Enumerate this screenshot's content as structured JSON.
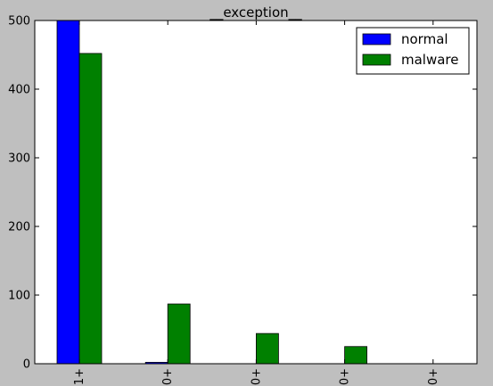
{
  "chart_data": {
    "type": "bar",
    "title": "__exception__",
    "xlabel": "",
    "ylabel": "",
    "categories": [
      "1+",
      "0+",
      "0+",
      "0+",
      "0+"
    ],
    "series": [
      {
        "name": "normal",
        "color": "#0000ff",
        "values": [
          500,
          2,
          0,
          0,
          0
        ]
      },
      {
        "name": "malware",
        "color": "#008000",
        "values": [
          452,
          87,
          44,
          25,
          0
        ]
      }
    ],
    "yticks": [
      0,
      100,
      200,
      300,
      400,
      500
    ],
    "ylim": [
      0,
      500
    ],
    "grid": false,
    "legend": "top-right"
  }
}
